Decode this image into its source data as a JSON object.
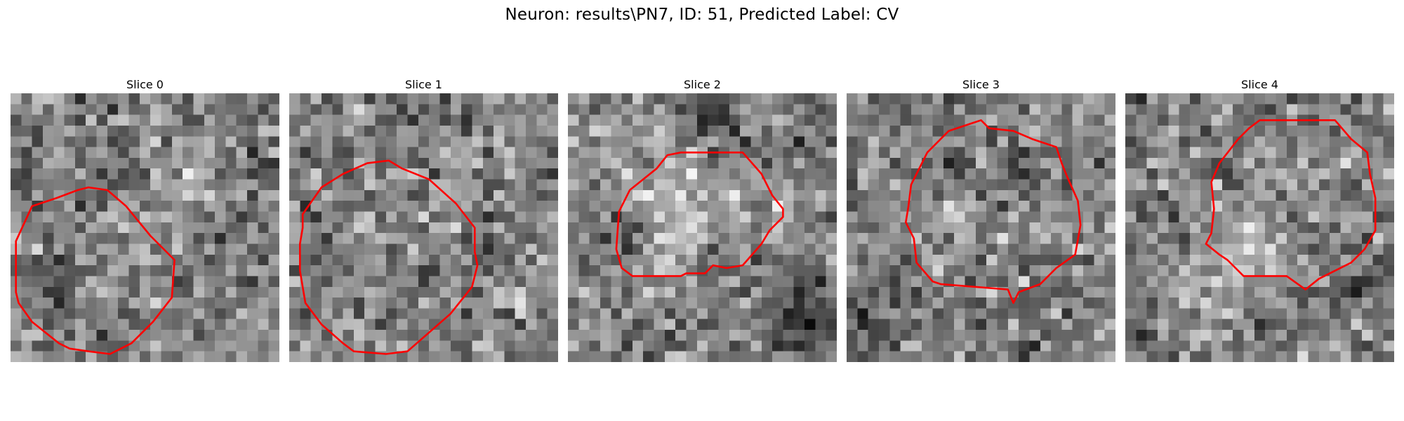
{
  "figure": {
    "suptitle": "Neuron: results\\PN7, ID: 51, Predicted Label: CV"
  },
  "panels": [
    {
      "title": "Slice 0",
      "seed": 11,
      "bright": [
        [
          0.62,
          0.3,
          0.12,
          35
        ],
        [
          0.4,
          0.62,
          0.1,
          18
        ],
        [
          0.9,
          0.82,
          0.06,
          25
        ]
      ],
      "dark": [
        [
          0.45,
          0.3,
          0.05,
          40
        ],
        [
          0.18,
          0.78,
          0.04,
          60
        ],
        [
          0.9,
          0.25,
          0.05,
          30
        ]
      ],
      "contour": [
        [
          0.02,
          0.55
        ],
        [
          0.08,
          0.42
        ],
        [
          0.17,
          0.39
        ],
        [
          0.25,
          0.36
        ],
        [
          0.29,
          0.35
        ],
        [
          0.36,
          0.36
        ],
        [
          0.43,
          0.42
        ],
        [
          0.52,
          0.53
        ],
        [
          0.61,
          0.62
        ],
        [
          0.6,
          0.76
        ],
        [
          0.53,
          0.85
        ],
        [
          0.45,
          0.93
        ],
        [
          0.37,
          0.97
        ],
        [
          0.29,
          0.96
        ],
        [
          0.22,
          0.95
        ],
        [
          0.18,
          0.93
        ],
        [
          0.08,
          0.85
        ],
        [
          0.03,
          0.78
        ],
        [
          0.02,
          0.74
        ]
      ]
    },
    {
      "title": "Slice 1",
      "seed": 23,
      "bright": [
        [
          0.6,
          0.28,
          0.1,
          30
        ],
        [
          0.35,
          0.55,
          0.14,
          15
        ],
        [
          0.85,
          0.75,
          0.07,
          30
        ]
      ],
      "dark": [
        [
          0.52,
          0.68,
          0.04,
          55
        ],
        [
          0.75,
          0.55,
          0.05,
          35
        ],
        [
          0.88,
          0.4,
          0.06,
          30
        ]
      ],
      "contour": [
        [
          0.05,
          0.45
        ],
        [
          0.12,
          0.35
        ],
        [
          0.2,
          0.3
        ],
        [
          0.29,
          0.26
        ],
        [
          0.37,
          0.25
        ],
        [
          0.42,
          0.28
        ],
        [
          0.52,
          0.32
        ],
        [
          0.62,
          0.41
        ],
        [
          0.69,
          0.5
        ],
        [
          0.69,
          0.59
        ],
        [
          0.7,
          0.64
        ],
        [
          0.68,
          0.72
        ],
        [
          0.6,
          0.82
        ],
        [
          0.52,
          0.89
        ],
        [
          0.44,
          0.96
        ],
        [
          0.36,
          0.97
        ],
        [
          0.24,
          0.96
        ],
        [
          0.2,
          0.93
        ],
        [
          0.12,
          0.86
        ],
        [
          0.06,
          0.78
        ],
        [
          0.04,
          0.66
        ],
        [
          0.04,
          0.56
        ],
        [
          0.05,
          0.5
        ]
      ]
    },
    {
      "title": "Slice 2",
      "seed": 37,
      "bright": [
        [
          0.42,
          0.45,
          0.16,
          70
        ],
        [
          0.84,
          0.46,
          0.08,
          35
        ],
        [
          0.2,
          0.15,
          0.08,
          25
        ]
      ],
      "dark": [
        [
          0.24,
          0.5,
          0.06,
          75
        ],
        [
          0.58,
          0.55,
          0.05,
          60
        ],
        [
          0.88,
          0.85,
          0.1,
          80
        ],
        [
          0.52,
          0.05,
          0.08,
          60
        ],
        [
          0.7,
          0.2,
          0.05,
          40
        ]
      ],
      "contour": [
        [
          0.19,
          0.44
        ],
        [
          0.23,
          0.36
        ],
        [
          0.33,
          0.28
        ],
        [
          0.37,
          0.23
        ],
        [
          0.42,
          0.22
        ],
        [
          0.65,
          0.22
        ],
        [
          0.72,
          0.3
        ],
        [
          0.76,
          0.38
        ],
        [
          0.8,
          0.43
        ],
        [
          0.8,
          0.46
        ],
        [
          0.75,
          0.51
        ],
        [
          0.72,
          0.56
        ],
        [
          0.65,
          0.64
        ],
        [
          0.59,
          0.65
        ],
        [
          0.54,
          0.64
        ],
        [
          0.51,
          0.67
        ],
        [
          0.44,
          0.67
        ],
        [
          0.42,
          0.68
        ],
        [
          0.24,
          0.68
        ],
        [
          0.2,
          0.65
        ],
        [
          0.18,
          0.58
        ]
      ]
    },
    {
      "title": "Slice 3",
      "seed": 53,
      "bright": [
        [
          0.42,
          0.48,
          0.12,
          30
        ],
        [
          0.88,
          0.1,
          0.08,
          30
        ],
        [
          0.1,
          0.3,
          0.06,
          20
        ]
      ],
      "dark": [
        [
          0.4,
          0.25,
          0.05,
          55
        ],
        [
          0.65,
          0.28,
          0.05,
          60
        ],
        [
          0.08,
          0.85,
          0.1,
          50
        ],
        [
          0.42,
          0.82,
          0.04,
          30
        ]
      ],
      "contour": [
        [
          0.24,
          0.34
        ],
        [
          0.3,
          0.22
        ],
        [
          0.38,
          0.14
        ],
        [
          0.47,
          0.11
        ],
        [
          0.5,
          0.1
        ],
        [
          0.53,
          0.13
        ],
        [
          0.62,
          0.14
        ],
        [
          0.69,
          0.17
        ],
        [
          0.78,
          0.2
        ],
        [
          0.8,
          0.26
        ],
        [
          0.82,
          0.31
        ],
        [
          0.86,
          0.4
        ],
        [
          0.87,
          0.49
        ],
        [
          0.85,
          0.6
        ],
        [
          0.78,
          0.65
        ],
        [
          0.72,
          0.71
        ],
        [
          0.64,
          0.74
        ],
        [
          0.62,
          0.78
        ],
        [
          0.6,
          0.73
        ],
        [
          0.35,
          0.71
        ],
        [
          0.32,
          0.7
        ],
        [
          0.26,
          0.63
        ],
        [
          0.25,
          0.54
        ],
        [
          0.22,
          0.48
        ],
        [
          0.23,
          0.42
        ]
      ]
    },
    {
      "title": "Slice 4",
      "seed": 71,
      "bright": [
        [
          0.45,
          0.58,
          0.12,
          55
        ],
        [
          0.3,
          0.78,
          0.1,
          30
        ],
        [
          0.75,
          0.28,
          0.12,
          15
        ]
      ],
      "dark": [
        [
          0.05,
          0.88,
          0.05,
          50
        ],
        [
          0.18,
          0.5,
          0.05,
          35
        ],
        [
          0.88,
          0.7,
          0.05,
          35
        ],
        [
          0.62,
          0.78,
          0.04,
          30
        ]
      ],
      "contour": [
        [
          0.32,
          0.33
        ],
        [
          0.35,
          0.26
        ],
        [
          0.42,
          0.17
        ],
        [
          0.46,
          0.13
        ],
        [
          0.5,
          0.1
        ],
        [
          0.78,
          0.1
        ],
        [
          0.84,
          0.17
        ],
        [
          0.9,
          0.22
        ],
        [
          0.91,
          0.3
        ],
        [
          0.93,
          0.39
        ],
        [
          0.93,
          0.51
        ],
        [
          0.89,
          0.58
        ],
        [
          0.84,
          0.63
        ],
        [
          0.78,
          0.66
        ],
        [
          0.72,
          0.69
        ],
        [
          0.67,
          0.73
        ],
        [
          0.6,
          0.68
        ],
        [
          0.44,
          0.68
        ],
        [
          0.38,
          0.62
        ],
        [
          0.35,
          0.6
        ],
        [
          0.3,
          0.56
        ],
        [
          0.32,
          0.52
        ],
        [
          0.33,
          0.43
        ]
      ]
    }
  ],
  "colors": {
    "contour": "#ff0000"
  }
}
